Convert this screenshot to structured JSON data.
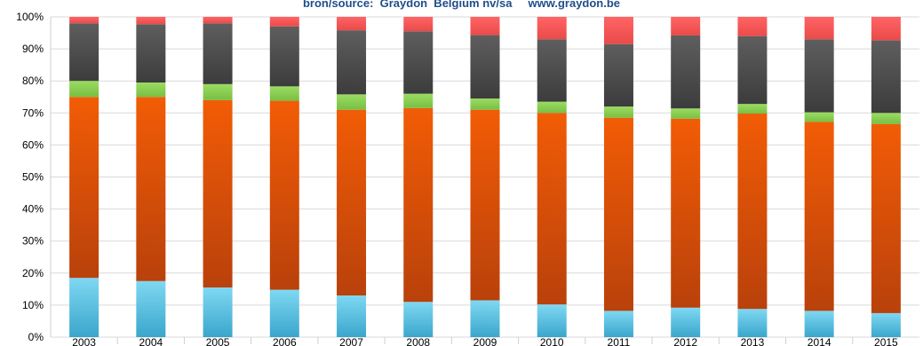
{
  "source_text": "bron/source:  Graydon  Belgium nv/sa     www.graydon.be",
  "chart_data": {
    "type": "bar",
    "stacked": true,
    "normalized": true,
    "categories": [
      "2003",
      "2004",
      "2005",
      "2006",
      "2007",
      "2008",
      "2009",
      "2010",
      "2011",
      "2012",
      "2013",
      "2014",
      "2015"
    ],
    "y_ticks": [
      "0%",
      "10%",
      "20%",
      "30%",
      "40%",
      "50%",
      "60%",
      "70%",
      "80%",
      "90%",
      "100%"
    ],
    "ylim": [
      0,
      100
    ],
    "grid": true,
    "series": [
      {
        "color": "#5bc8e8",
        "values": [
          18.5,
          17.5,
          15.5,
          14.8,
          13.0,
          11.0,
          11.5,
          10.2,
          8.2,
          9.2,
          8.8,
          8.2,
          7.5
        ]
      },
      {
        "color": "#e8520a",
        "values": [
          56.5,
          57.5,
          58.5,
          59.0,
          58.0,
          60.5,
          59.5,
          59.8,
          60.3,
          59.0,
          61.0,
          59.0,
          59.0
        ]
      },
      {
        "color": "#8ed15a",
        "values": [
          5.0,
          4.5,
          5.0,
          4.5,
          4.8,
          4.5,
          3.5,
          3.5,
          3.5,
          3.2,
          3.0,
          3.0,
          3.5
        ]
      },
      {
        "color": "#4a4a4a",
        "values": [
          18.0,
          18.2,
          19.0,
          18.7,
          20.0,
          19.5,
          19.8,
          19.5,
          19.5,
          22.8,
          21.2,
          22.8,
          22.7
        ]
      },
      {
        "color": "#f15a5a",
        "values": [
          2.0,
          2.3,
          2.0,
          3.0,
          4.2,
          4.5,
          5.7,
          7.0,
          8.5,
          5.8,
          6.0,
          7.0,
          7.3
        ]
      }
    ]
  }
}
